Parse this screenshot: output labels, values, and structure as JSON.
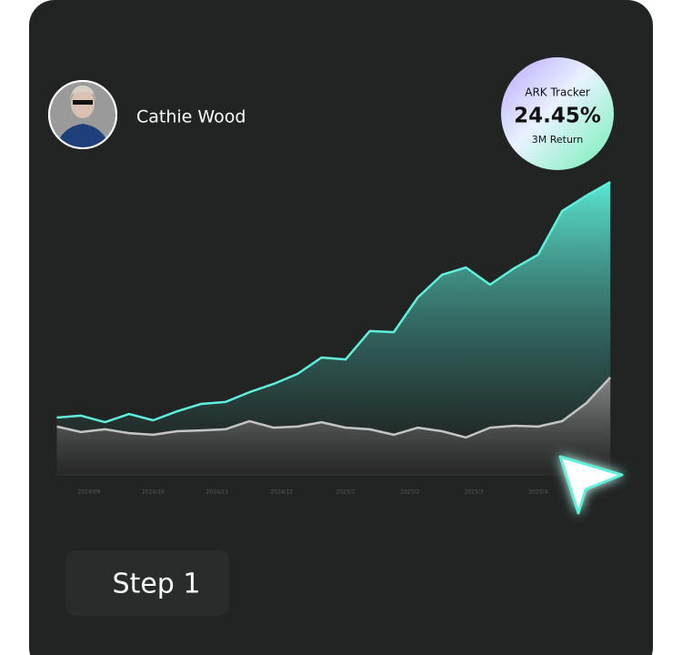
{
  "profile": {
    "name": "Cathie Wood"
  },
  "badge": {
    "title": "ARK Tracker",
    "value": "24.45%",
    "caption": "3M Return"
  },
  "step": {
    "label": "Step 1"
  },
  "chart_data": {
    "type": "area",
    "x": [
      -0.5,
      -0.125,
      0.25,
      0.625,
      1.0,
      1.375,
      1.75,
      2.125,
      2.5,
      2.875,
      3.25,
      3.625,
      4.0,
      4.375,
      4.75,
      5.125,
      5.5,
      5.875,
      6.25,
      6.625,
      7.0,
      7.375,
      7.75,
      8.125
    ],
    "xlim": [
      -0.55,
      8.15
    ],
    "xticks": [
      {
        "value": 0,
        "label": "2024/09"
      },
      {
        "value": 1,
        "label": "2024/10"
      },
      {
        "value": 2,
        "label": "2024/11"
      },
      {
        "value": 3,
        "label": "2024/12"
      },
      {
        "value": 4,
        "label": "2025/1"
      },
      {
        "value": 5,
        "label": "2025/2"
      },
      {
        "value": 6,
        "label": "2025/3"
      },
      {
        "value": 7,
        "label": "2025/4"
      }
    ],
    "ylim": [
      0,
      110
    ],
    "series": [
      {
        "color": "#5ef0dc",
        "values": [
          21,
          21.7,
          19.3,
          22.3,
          20,
          23.3,
          26,
          26.7,
          30.3,
          33.3,
          37,
          43,
          42.3,
          52.7,
          52.3,
          65,
          73.3,
          76,
          69.7,
          75.7,
          80.7,
          96.7,
          102.3,
          107.3
        ]
      },
      {
        "color": "#c4c4c4",
        "values": [
          17.7,
          15.7,
          16.7,
          15.3,
          14.7,
          16,
          16.3,
          16.7,
          19.7,
          17.3,
          17.7,
          19.3,
          17.3,
          16.7,
          14.7,
          17.3,
          16,
          13.7,
          17.3,
          18,
          17.7,
          19.7,
          26.3,
          35.7
        ]
      }
    ]
  }
}
